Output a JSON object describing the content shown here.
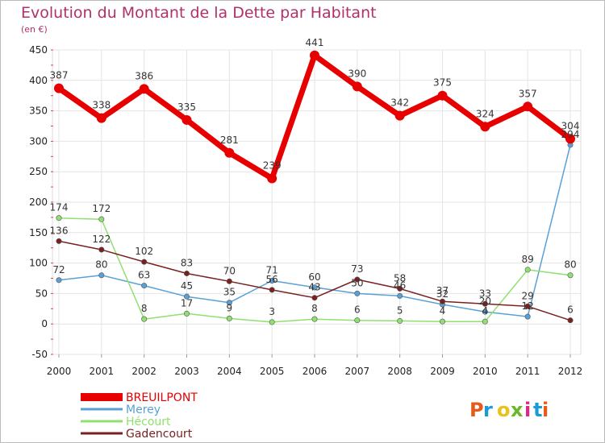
{
  "chart_data": {
    "type": "line",
    "title": "Evolution du Montant de la Dette par Habitant",
    "subtitle": "(en €)",
    "xlabel": "",
    "ylabel": "",
    "x": [
      "2000",
      "2001",
      "2002",
      "2003",
      "2004",
      "2005",
      "2006",
      "2007",
      "2008",
      "2009",
      "2010",
      "2011",
      "2012"
    ],
    "ylim": [
      -50,
      450
    ],
    "yticks": [
      -50,
      0,
      50,
      100,
      150,
      200,
      250,
      300,
      350,
      400,
      450
    ],
    "grid": true,
    "legend_position": "bottom-left",
    "series": [
      {
        "name": "BREUILPONT",
        "color": "#e60000",
        "values": [
          387,
          338,
          386,
          335,
          281,
          239,
          441,
          390,
          342,
          375,
          324,
          357,
          304
        ]
      },
      {
        "name": "Merey",
        "color": "#5aa0d6",
        "values": [
          72,
          80,
          63,
          45,
          35,
          71,
          60,
          50,
          46,
          32,
          20,
          12,
          294
        ]
      },
      {
        "name": "Hécourt",
        "color": "#90e070",
        "values": [
          174,
          172,
          8,
          17,
          9,
          3,
          8,
          6,
          5,
          4,
          4,
          89,
          80
        ]
      },
      {
        "name": "Gadencourt",
        "color": "#7a2020",
        "values": [
          136,
          122,
          102,
          83,
          70,
          56,
          43,
          73,
          58,
          37,
          33,
          29,
          6
        ]
      }
    ]
  },
  "logo": {
    "text": "Proxiti",
    "colors": [
      "#e85a1a",
      "#1a9ad6",
      "#e8c21a",
      "#6ab82a",
      "#d62a8a",
      "#1a9ad6",
      "#e85a1a"
    ]
  }
}
